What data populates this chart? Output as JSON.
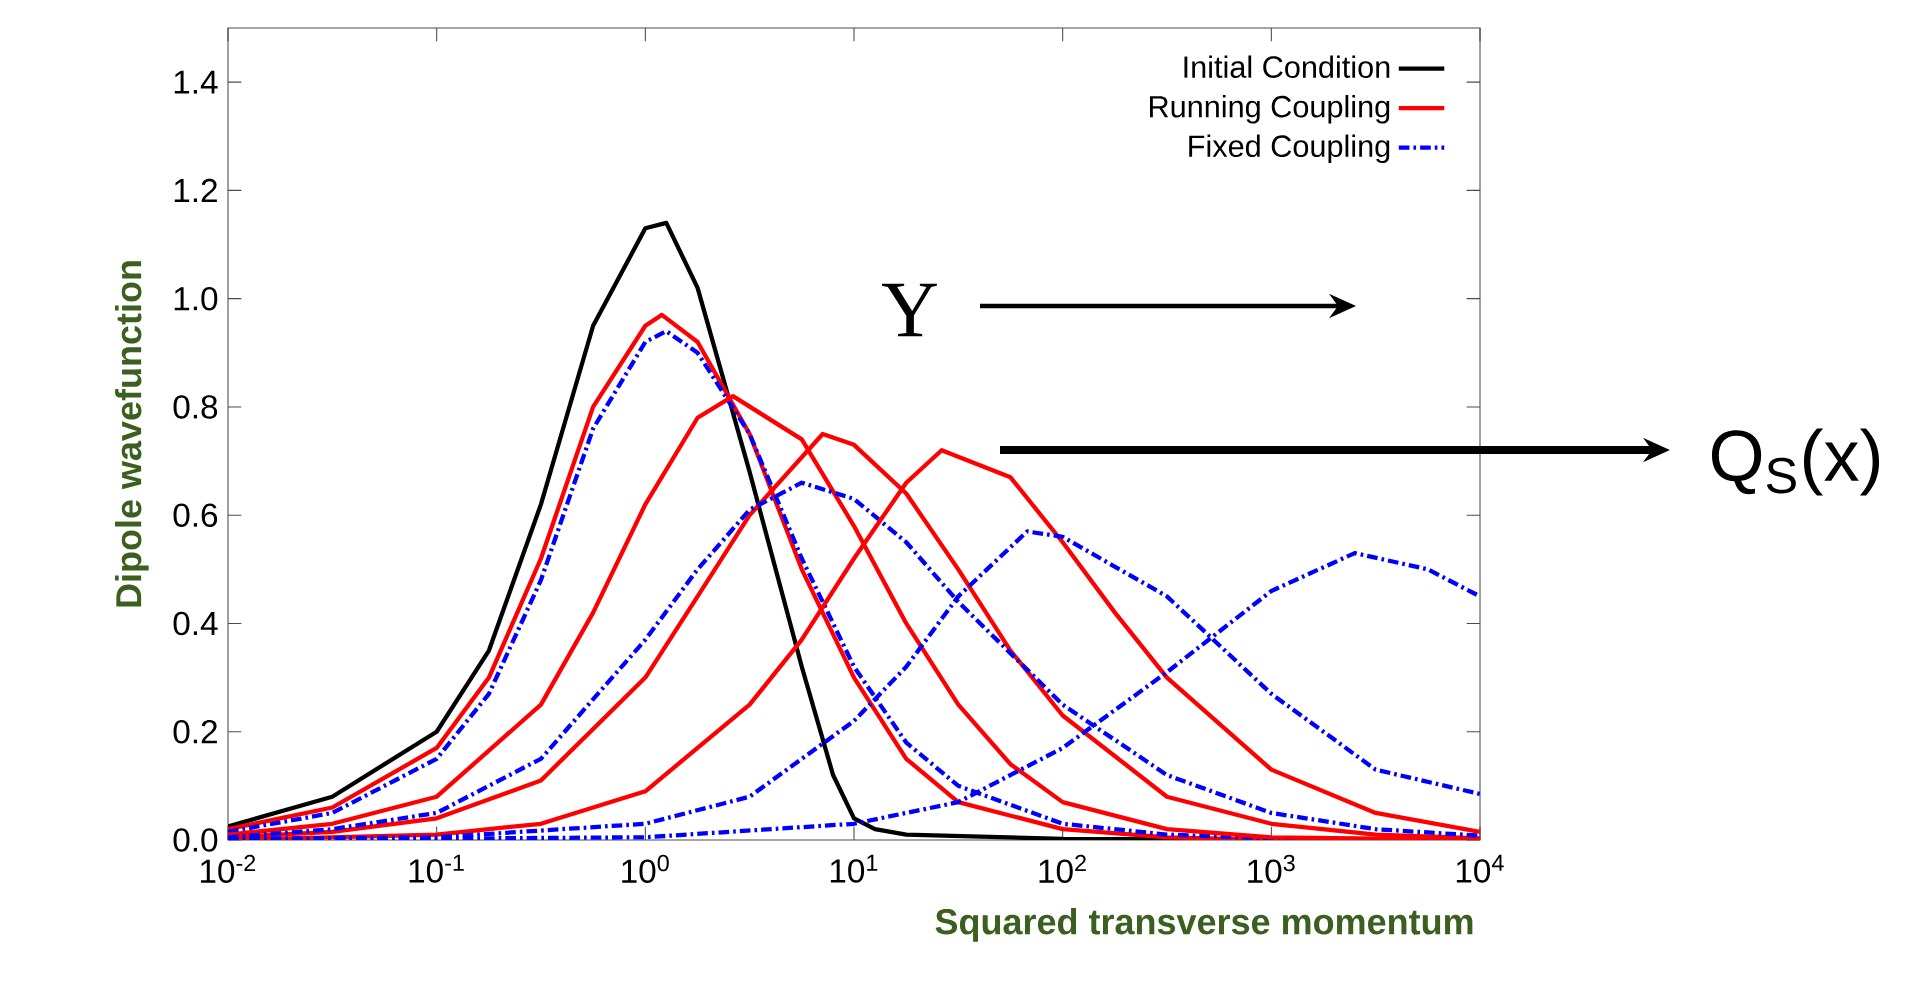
{
  "chart_data": {
    "type": "line",
    "xlabel": "Squared transverse momentum",
    "ylabel": "Dipole wavefunction",
    "log": "x",
    "xlim": [
      0.01,
      10000
    ],
    "ylim": [
      0,
      1.5
    ],
    "xticks": [
      {
        "value": 0.01,
        "label": "10$^{-2}$"
      },
      {
        "value": 0.1,
        "label": "10$^{-1}$"
      },
      {
        "value": 1,
        "label": "10$^{0}$"
      },
      {
        "value": 10,
        "label": "10$^{1}$"
      },
      {
        "value": 100,
        "label": "10$^{2}$"
      },
      {
        "value": 1000,
        "label": "10$^{3}$"
      },
      {
        "value": 10000,
        "label": "10$^{4}$"
      }
    ],
    "yticks": [
      {
        "value": 0,
        "label": "0.0"
      },
      {
        "value": 0.2,
        "label": "0.2"
      },
      {
        "value": 0.4,
        "label": "0.4"
      },
      {
        "value": 0.6,
        "label": "0.6"
      },
      {
        "value": 0.8,
        "label": "0.8"
      },
      {
        "value": 1,
        "label": "1.0"
      },
      {
        "value": 1.2,
        "label": "1.2"
      },
      {
        "value": 1.4,
        "label": "1.4"
      }
    ],
    "legend": "top right",
    "marker": "none",
    "grid": false,
    "annotations": [
      "Y",
      "Q$_{S}$(x)"
    ],
    "series": [
      {
        "name": "Initial Condition",
        "color": "#000000",
        "line_style": "solid",
        "x": [
          0.01,
          0.0316,
          0.1,
          0.178,
          0.316,
          0.562,
          1,
          1.26,
          1.78,
          3.16,
          5.62,
          7.94,
          10,
          12.6,
          17.8,
          100,
          10000
        ],
        "values": [
          0.025,
          0.08,
          0.2,
          0.35,
          0.62,
          0.95,
          1.13,
          1.14,
          1.02,
          0.68,
          0.32,
          0.12,
          0.04,
          0.02,
          0.01,
          0.002,
          0
        ]
      },
      {
        "name": "Running Coupling",
        "color": "#ff0000",
        "line_style": "solid",
        "x": [
          0.01,
          0.0316,
          0.1,
          0.178,
          0.316,
          0.562,
          1,
          1.2,
          1.78,
          3.16,
          5.62,
          10,
          17.8,
          31.6,
          100,
          316,
          1000,
          10000
        ],
        "values": [
          0.02,
          0.06,
          0.17,
          0.3,
          0.52,
          0.8,
          0.95,
          0.97,
          0.92,
          0.75,
          0.5,
          0.3,
          0.15,
          0.07,
          0.02,
          0.005,
          0,
          0
        ]
      },
      {
        "name": "Fixed Coupling",
        "color": "#0000ff",
        "line_style": "dashdot",
        "x": [
          0.01,
          0.0316,
          0.1,
          0.178,
          0.316,
          0.562,
          1,
          1.26,
          1.78,
          3.16,
          5.62,
          10,
          17.8,
          31.6,
          100,
          316,
          1000,
          10000
        ],
        "values": [
          0.015,
          0.05,
          0.15,
          0.27,
          0.48,
          0.76,
          0.92,
          0.94,
          0.9,
          0.75,
          0.52,
          0.32,
          0.18,
          0.1,
          0.03,
          0.01,
          0.003,
          0
        ]
      },
      {
        "color": "#ff0000",
        "line_style": "solid",
        "x": [
          0.01,
          0.0316,
          0.1,
          0.316,
          0.562,
          1,
          1.78,
          2.63,
          5.62,
          10,
          17.8,
          31.6,
          56.2,
          100,
          316,
          1000,
          10000
        ],
        "values": [
          0.01,
          0.03,
          0.08,
          0.25,
          0.42,
          0.62,
          0.78,
          0.82,
          0.74,
          0.58,
          0.4,
          0.25,
          0.14,
          0.07,
          0.02,
          0.005,
          0
        ]
      },
      {
        "color": "#ff0000",
        "line_style": "solid",
        "x": [
          0.01,
          0.0316,
          0.1,
          0.316,
          1,
          1.78,
          3.16,
          7.08,
          10,
          17.8,
          31.6,
          56.2,
          100,
          316,
          1000,
          3160,
          10000
        ],
        "values": [
          0.005,
          0.015,
          0.04,
          0.11,
          0.3,
          0.45,
          0.6,
          0.75,
          0.73,
          0.64,
          0.5,
          0.35,
          0.23,
          0.08,
          0.03,
          0.01,
          0.003
        ]
      },
      {
        "color": "#0000ff",
        "line_style": "dashdot",
        "x": [
          0.01,
          0.0316,
          0.1,
          0.316,
          1,
          1.78,
          3.16,
          5.62,
          10,
          17.8,
          31.6,
          100,
          316,
          1000,
          3160,
          10000
        ],
        "values": [
          0.005,
          0.02,
          0.05,
          0.15,
          0.37,
          0.5,
          0.61,
          0.66,
          0.63,
          0.55,
          0.44,
          0.25,
          0.12,
          0.05,
          0.02,
          0.008
        ]
      },
      {
        "color": "#ff0000",
        "line_style": "solid",
        "x": [
          0.01,
          0.1,
          0.316,
          1,
          3.16,
          5.62,
          10,
          17.8,
          26.3,
          56.2,
          100,
          178,
          316,
          1000,
          3160,
          10000
        ],
        "values": [
          0,
          0.01,
          0.03,
          0.09,
          0.25,
          0.37,
          0.52,
          0.66,
          0.72,
          0.67,
          0.55,
          0.42,
          0.3,
          0.13,
          0.05,
          0.015
        ]
      },
      {
        "color": "#0000ff",
        "line_style": "dashdot",
        "x": [
          0.01,
          0.1,
          1,
          3.16,
          10,
          17.8,
          31.6,
          67.6,
          100,
          316,
          1000,
          3160,
          10000
        ],
        "values": [
          0.002,
          0.005,
          0.03,
          0.08,
          0.22,
          0.32,
          0.45,
          0.57,
          0.56,
          0.45,
          0.27,
          0.13,
          0.085
        ]
      },
      {
        "color": "#0000ff",
        "line_style": "dashdot",
        "x": [
          0.01,
          1,
          10,
          31.6,
          100,
          316,
          1000,
          2510,
          5620,
          10000
        ],
        "values": [
          0,
          0.005,
          0.03,
          0.07,
          0.17,
          0.31,
          0.46,
          0.53,
          0.5,
          0.45
        ]
      }
    ]
  }
}
